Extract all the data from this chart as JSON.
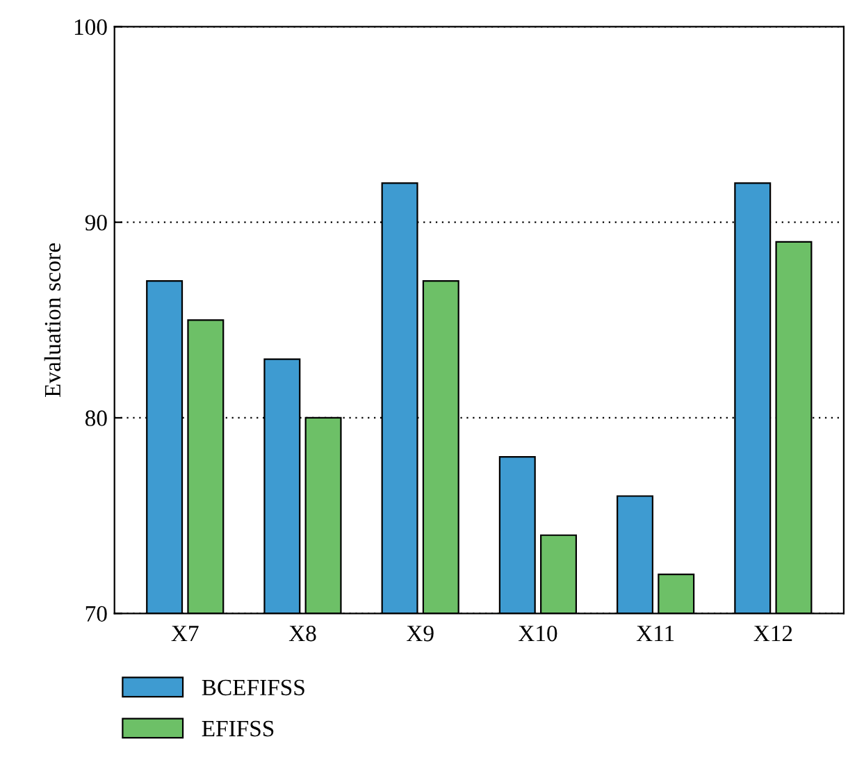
{
  "chart_data": {
    "type": "bar",
    "ylabel": "Evaluation score",
    "categories": [
      "X7",
      "X8",
      "X9",
      "X10",
      "X11",
      "X12"
    ],
    "series": [
      {
        "name": "BCEFIFSS",
        "color": "#3e9bd1",
        "values": [
          87,
          83,
          92,
          78,
          76,
          92
        ]
      },
      {
        "name": "EFIFSS",
        "color": "#6dc067",
        "values": [
          85,
          80,
          87,
          74,
          72,
          89
        ]
      }
    ],
    "ylim": [
      70,
      100
    ],
    "yticks": [
      70,
      80,
      90,
      100
    ],
    "grid": "y",
    "legend": "bottom left"
  }
}
